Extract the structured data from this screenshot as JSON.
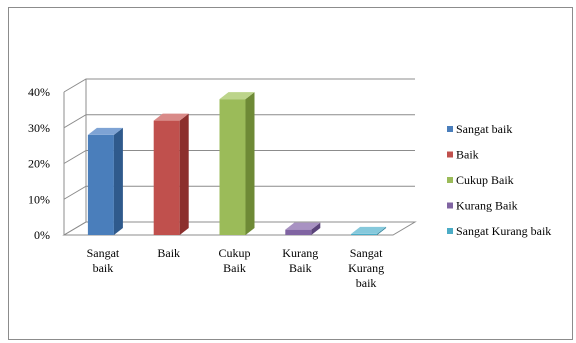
{
  "chart_data": {
    "type": "bar",
    "three_d": true,
    "categories": [
      [
        "Sangat",
        "baik"
      ],
      [
        "Baik"
      ],
      [
        "Cukup",
        "Baik"
      ],
      [
        "Kurang",
        "Baik"
      ],
      [
        "Sangat",
        "Kurang",
        "baik"
      ]
    ],
    "values": [
      28,
      32,
      38,
      1.5,
      0.3
    ],
    "unit": "%",
    "ylim": [
      0,
      40
    ],
    "yticks": [
      "0%",
      "10%",
      "20%",
      "30%",
      "40%"
    ],
    "grid": true,
    "legend_position": "right",
    "legend": [
      "Sangat baik",
      "Baik",
      "Cukup Baik",
      "Kurang Baik",
      "Sangat Kurang baik"
    ],
    "colors": [
      "#4a7ebb",
      "#c0504d",
      "#9bbb59",
      "#8064a2",
      "#4bacc6"
    ],
    "colors_dark": [
      "#2f5a8c",
      "#8c2f2d",
      "#6e8a36",
      "#5a437a",
      "#2e7f96"
    ],
    "colors_top": [
      "#7ea3d4",
      "#d98a88",
      "#bcd48a",
      "#a892c2",
      "#86c9dc"
    ]
  }
}
